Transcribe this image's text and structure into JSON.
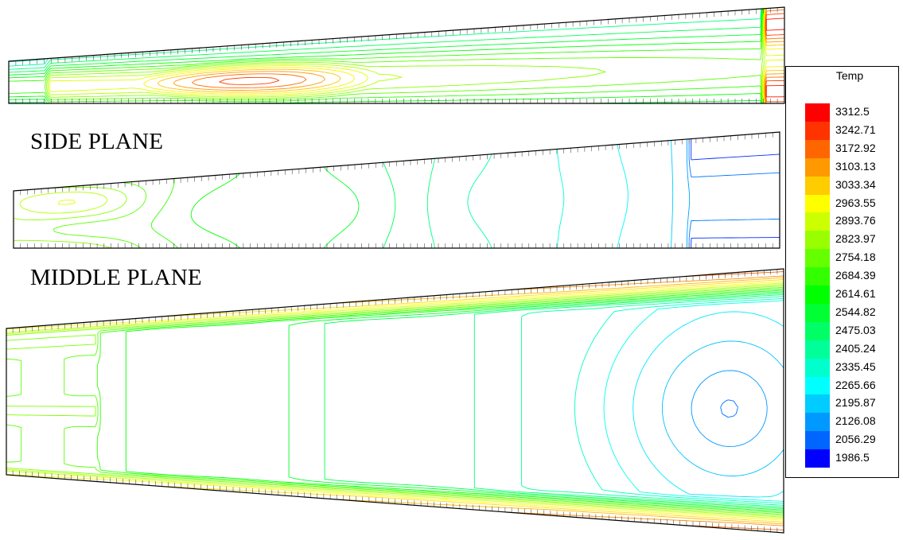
{
  "labels": {
    "side_plane": "SIDE PLANE",
    "middle_plane": "MIDDLE PLANE"
  },
  "legend": {
    "title": "Temp",
    "levels": [
      {
        "value": "3312.5",
        "color": "#ff0000"
      },
      {
        "value": "3242.71",
        "color": "#ff3300"
      },
      {
        "value": "3172.92",
        "color": "#ff6600"
      },
      {
        "value": "3103.13",
        "color": "#ff9900"
      },
      {
        "value": "3033.34",
        "color": "#ffcc00"
      },
      {
        "value": "2963.55",
        "color": "#ffff00"
      },
      {
        "value": "2893.76",
        "color": "#ccff00"
      },
      {
        "value": "2823.97",
        "color": "#99ff00"
      },
      {
        "value": "2754.18",
        "color": "#66ff00"
      },
      {
        "value": "2684.39",
        "color": "#33ff00"
      },
      {
        "value": "2614.61",
        "color": "#00ff00"
      },
      {
        "value": "2544.82",
        "color": "#00ff33"
      },
      {
        "value": "2475.03",
        "color": "#00ff66"
      },
      {
        "value": "2405.24",
        "color": "#00ff99"
      },
      {
        "value": "2335.45",
        "color": "#00ffcc"
      },
      {
        "value": "2265.66",
        "color": "#00ffff"
      },
      {
        "value": "2195.87",
        "color": "#00ccff"
      },
      {
        "value": "2126.08",
        "color": "#0099ff"
      },
      {
        "value": "2056.29",
        "color": "#0066ff"
      },
      {
        "value": "1986.5",
        "color": "#0000ff"
      }
    ]
  }
}
